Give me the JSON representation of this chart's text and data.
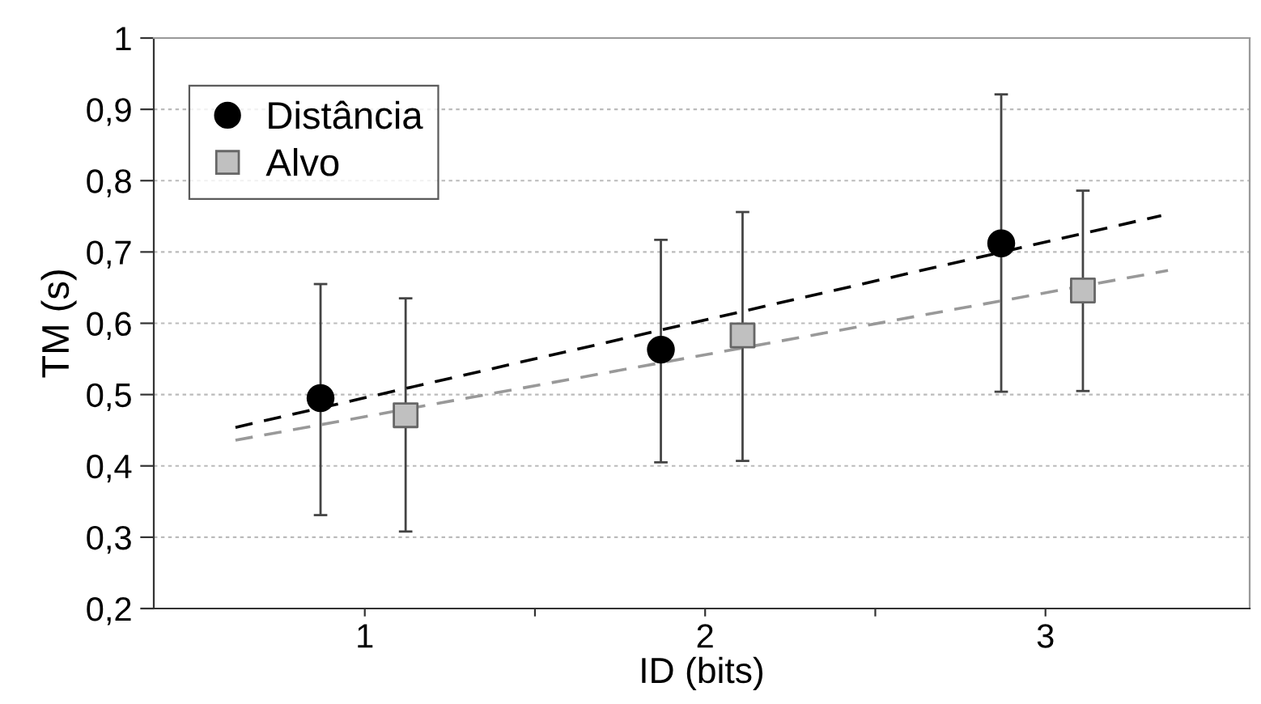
{
  "chart_data": {
    "type": "scatter",
    "xlabel": "ID (bits)",
    "ylabel": "TM (s)",
    "xlim": [
      0.38,
      3.6
    ],
    "xticks": [
      {
        "value": 1,
        "label": "1"
      },
      {
        "value": 1.5,
        "label": null
      },
      {
        "value": 2,
        "label": "2"
      },
      {
        "value": 2.5,
        "label": null
      },
      {
        "value": 3,
        "label": "3"
      }
    ],
    "ylim": [
      0.2,
      1
    ],
    "yticks": [
      {
        "value": 0.2,
        "label": "0,2"
      },
      {
        "value": 0.3,
        "label": "0,3"
      },
      {
        "value": 0.4,
        "label": "0,4"
      },
      {
        "value": 0.5,
        "label": "0,5"
      },
      {
        "value": 0.6,
        "label": "0,6"
      },
      {
        "value": 0.7,
        "label": "0,7"
      },
      {
        "value": 0.8,
        "label": "0,8"
      },
      {
        "value": 0.9,
        "label": "0,9"
      },
      {
        "value": 1,
        "label": "1"
      }
    ],
    "grid": "y",
    "legend": "top left",
    "series": [
      {
        "name": "Distância",
        "marker": "circle",
        "color": "#000000",
        "x": [
          0.87,
          1.87,
          2.87
        ],
        "values": [
          0.495,
          0.563,
          0.712
        ],
        "errors": [
          [
            0.331,
            0.655
          ],
          [
            0.405,
            0.717
          ],
          [
            0.504,
            0.921
          ]
        ]
      },
      {
        "name": "Alvo",
        "marker": "square",
        "color": "#c0c0c0",
        "x": [
          1.12,
          2.11,
          3.11
        ],
        "values": [
          0.471,
          0.583,
          0.646
        ],
        "errors": [
          [
            0.308,
            0.635
          ],
          [
            0.407,
            0.756
          ],
          [
            0.505,
            0.786
          ]
        ]
      },
      {
        "type": "line",
        "line_style": "dashed",
        "marker": "none",
        "color": "#000000",
        "x": [
          0.62,
          3.34
        ],
        "values": [
          0.454,
          0.751
        ]
      },
      {
        "type": "line",
        "line_style": "dashed",
        "marker": "none",
        "color": "#999999",
        "x": [
          0.62,
          3.36
        ],
        "values": [
          0.436,
          0.674
        ]
      }
    ]
  }
}
